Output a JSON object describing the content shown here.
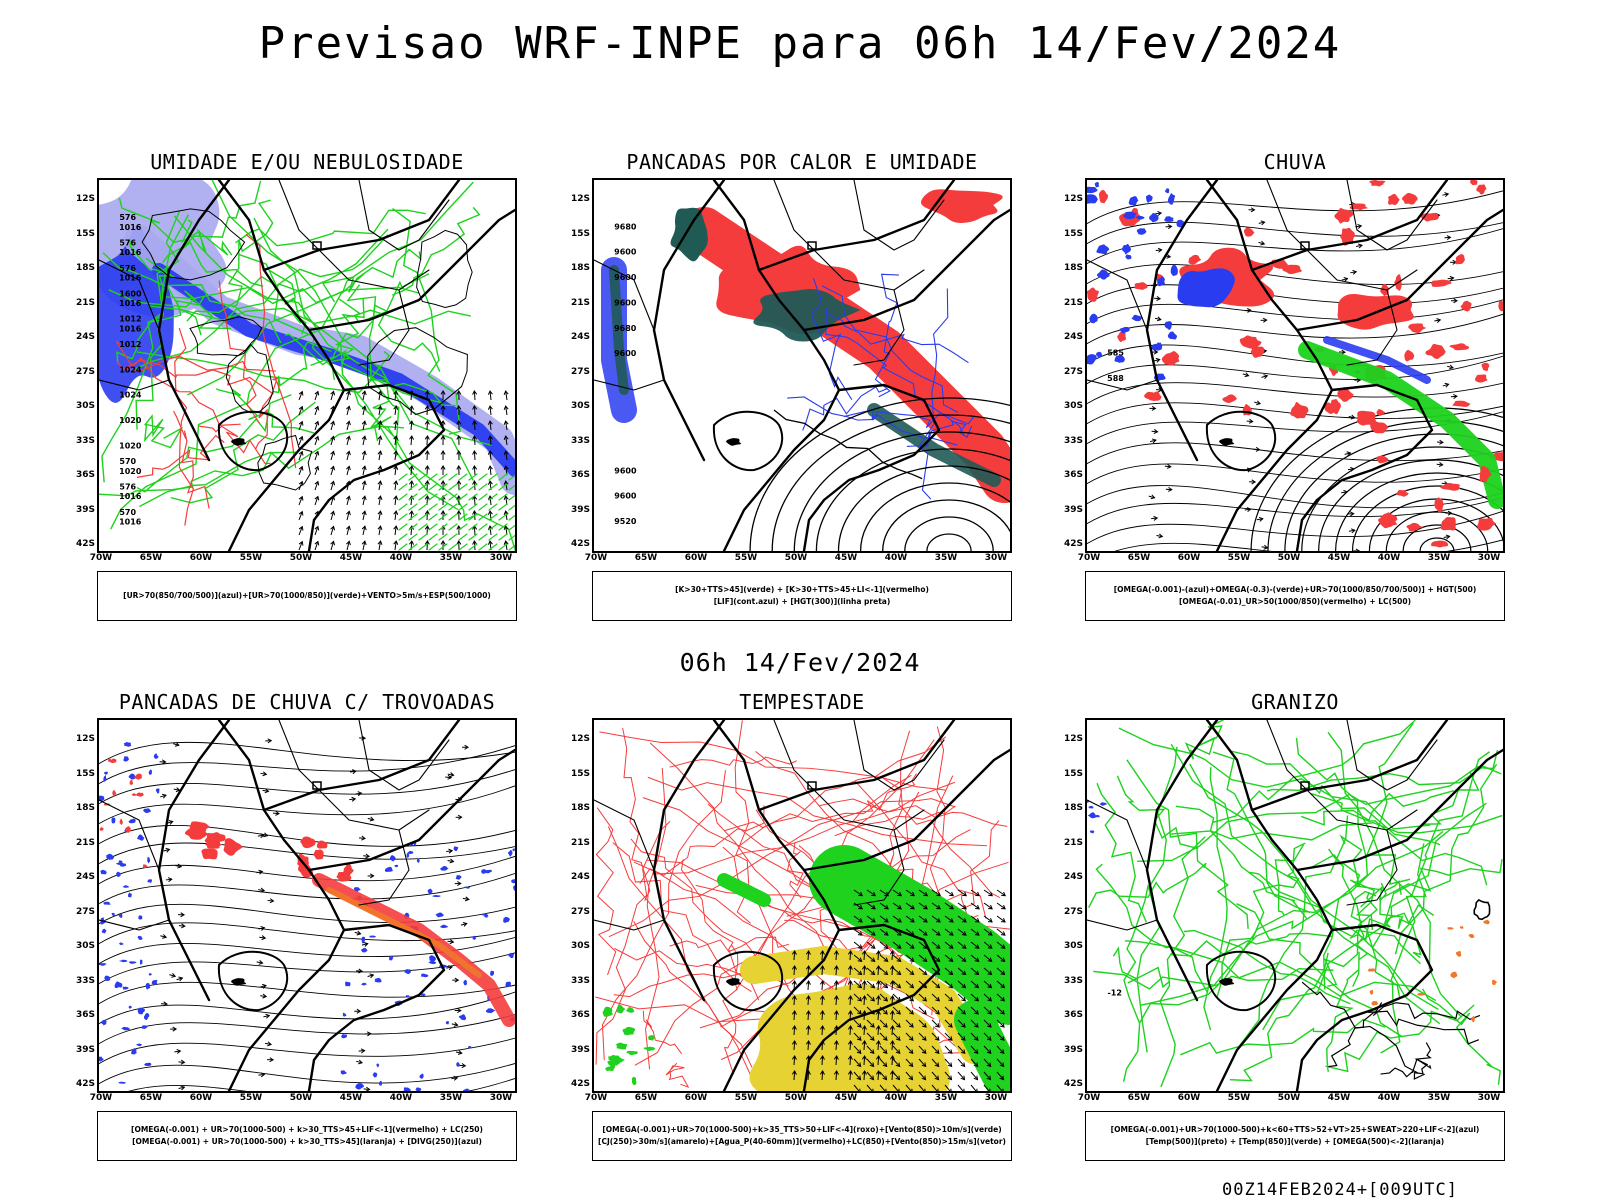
{
  "header": {
    "title": "Previsao WRF-INPE  para 06h 14/Fev/2024"
  },
  "mid": {
    "title": "06h 14/Fev/2024"
  },
  "footer": {
    "stamp": "00Z14FEB2024+[009UTC]"
  },
  "axes": {
    "lat_labels": [
      "12S",
      "15S",
      "18S",
      "21S",
      "24S",
      "27S",
      "30S",
      "33S",
      "36S",
      "39S",
      "42S"
    ],
    "lon_labels": [
      "70W",
      "65W",
      "60W",
      "55W",
      "50W",
      "45W",
      "40W",
      "35W",
      "30W"
    ]
  },
  "colors": {
    "blue": "#2a3cf0",
    "lightblue": "#a8a8f0",
    "green": "#1ed21e",
    "red": "#f53c3c",
    "darkteal": "#205a55",
    "yellow": "#e6d232",
    "orange": "#f07828"
  },
  "panels": [
    {
      "title": "UMIDADE E/OU NEBULOSIDADE",
      "legend": [
        "[UR>70(850/700/500)](azul)+[UR>70(1000/850)](verde)+VENTO>5m/s+ESP(500/1000)"
      ],
      "contour_labels": [
        "1016",
        "1016",
        "1016",
        "1016",
        "1016",
        "1016",
        "1016",
        "1020",
        "1020",
        "1020",
        "1024",
        "1024",
        "1012",
        "1012",
        "1600",
        "576",
        "576",
        "576",
        "570",
        "576",
        "570"
      ]
    },
    {
      "title": "PANCADAS POR CALOR E UMIDADE",
      "legend": [
        "[K>30+TTS>45](verde) + [K>30+TTS>45+LI<-1](vermelho)",
        "[LIF](cont.azul) + [HGT(300)](linha preta)"
      ],
      "contour_labels": [
        "9600",
        "9680",
        "9600",
        "9600",
        "9600",
        "9680",
        "9520",
        "9600",
        "9600"
      ]
    },
    {
      "title": "CHUVA",
      "legend": [
        "[OMEGA(-0.001)-(azul)+OMEGA(-0.3)-(verde)+UR>70(1000/850/700/500)] + HGT(500)",
        "[OMEGA(-0.01)_UR>50(1000/850)(vermelho) + LC(500)"
      ],
      "contour_labels": [
        "588",
        "585"
      ]
    },
    {
      "title": "PANCADAS DE CHUVA C/ TROVOADAS",
      "legend": [
        "[OMEGA(-0.001) + UR>70(1000-500) + k>30_TTS>45+LIF<-1](vermelho) + LC(250)",
        "[OMEGA(-0.001) + UR>70(1000-500) + k>30_TTS>45](laranja) + [DIVG(250)](azul)"
      ],
      "contour_labels": []
    },
    {
      "title": "TEMPESTADE",
      "legend": [
        "[OMEGA(-0.001)+UR>70(1000-500)+k>35_TTS>50+LIF<-4](roxo)+[Vento(850)>10m/s](verde)",
        "[CJ(250)>30m/s](amarelo)+[Agua_P(40-60mm)](vermelho)+LC(850)+[Vento(850)>15m/s](vetor)"
      ],
      "contour_labels": []
    },
    {
      "title": "GRANIZO",
      "legend": [
        "[OMEGA(-0.001)+UR>70(1000-500)+k<60+TTS>52+VT>25+SWEAT>220+LIF<-2](azul)",
        "[Temp(500)](preto) + [Temp(850)](verde) + [OMEGA(500)<-2](laranja)"
      ],
      "contour_labels": [
        "-12"
      ]
    }
  ]
}
